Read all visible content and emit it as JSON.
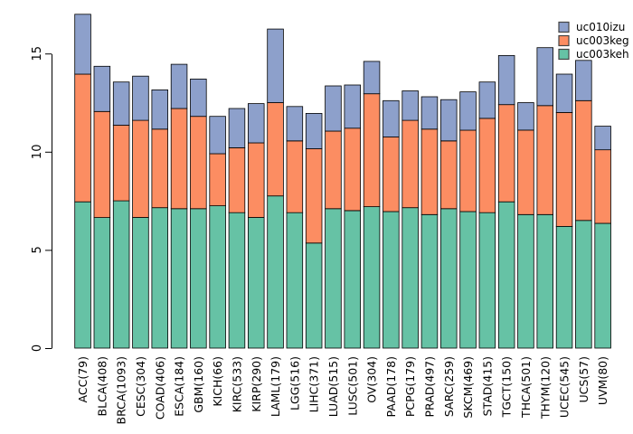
{
  "figure": {
    "background_color": "#ffffff",
    "title": ""
  },
  "chart_data": {
    "type": "bar",
    "subtype": "stacked",
    "title": "",
    "xlabel": "",
    "ylabel": "",
    "grid": false,
    "categories": [
      "ACC(79)",
      "BLCA(408)",
      "BRCA(1093)",
      "CESC(304)",
      "COAD(406)",
      "ESCA(184)",
      "GBM(160)",
      "KICH(66)",
      "KIRC(533)",
      "KIRP(290)",
      "LAML(179)",
      "LGG(516)",
      "LIHC(371)",
      "LUAD(515)",
      "LUSC(501)",
      "OV(304)",
      "PAAD(178)",
      "PCPG(179)",
      "PRAD(497)",
      "SARC(259)",
      "SKCM(469)",
      "STAD(415)",
      "TGCT(150)",
      "THCA(501)",
      "THYM(120)",
      "UCEC(545)",
      "UCS(57)",
      "UVM(80)"
    ],
    "series": [
      {
        "name": "uc003keh",
        "color": "#66C2A5",
        "values": [
          7.45,
          6.65,
          7.5,
          6.65,
          7.15,
          7.1,
          7.1,
          7.25,
          6.9,
          6.65,
          7.75,
          6.9,
          5.35,
          7.1,
          7.0,
          7.2,
          6.95,
          7.15,
          6.8,
          7.1,
          6.95,
          6.9,
          7.45,
          6.8,
          6.8,
          6.2,
          6.5,
          6.35
        ]
      },
      {
        "name": "uc003keg",
        "color": "#FC8D62",
        "values": [
          6.5,
          5.4,
          3.85,
          4.95,
          4.0,
          5.1,
          4.7,
          2.65,
          3.3,
          3.8,
          4.75,
          3.65,
          4.8,
          3.95,
          4.2,
          5.75,
          3.8,
          4.45,
          4.35,
          3.45,
          4.15,
          4.8,
          4.95,
          4.3,
          5.55,
          5.8,
          6.1,
          3.75
        ]
      },
      {
        "name": "uc010izu",
        "color": "#8DA0CB",
        "values": [
          3.05,
          2.3,
          2.2,
          2.25,
          2.0,
          2.25,
          1.9,
          1.9,
          2.0,
          2.0,
          3.75,
          1.75,
          1.8,
          2.3,
          2.2,
          1.65,
          1.85,
          1.5,
          1.65,
          2.1,
          1.95,
          1.85,
          2.5,
          1.4,
          2.95,
          1.95,
          2.05,
          1.2
        ]
      }
    ],
    "stack_order_bottom_to_top": [
      "uc003keh",
      "uc003keg",
      "uc010izu"
    ],
    "bar_border_color": "#000000",
    "y_axis": {
      "ticks": [
        "0",
        "5",
        "10",
        "15"
      ],
      "tick_values": [
        0,
        5,
        10,
        15
      ],
      "range": [
        0,
        17.2
      ]
    },
    "legend": {
      "position": "top-right",
      "entries": [
        {
          "label": "uc010izu",
          "color": "#8DA0CB"
        },
        {
          "label": "uc003keg",
          "color": "#FC8D62"
        },
        {
          "label": "uc003keh",
          "color": "#66C2A5"
        }
      ]
    }
  }
}
